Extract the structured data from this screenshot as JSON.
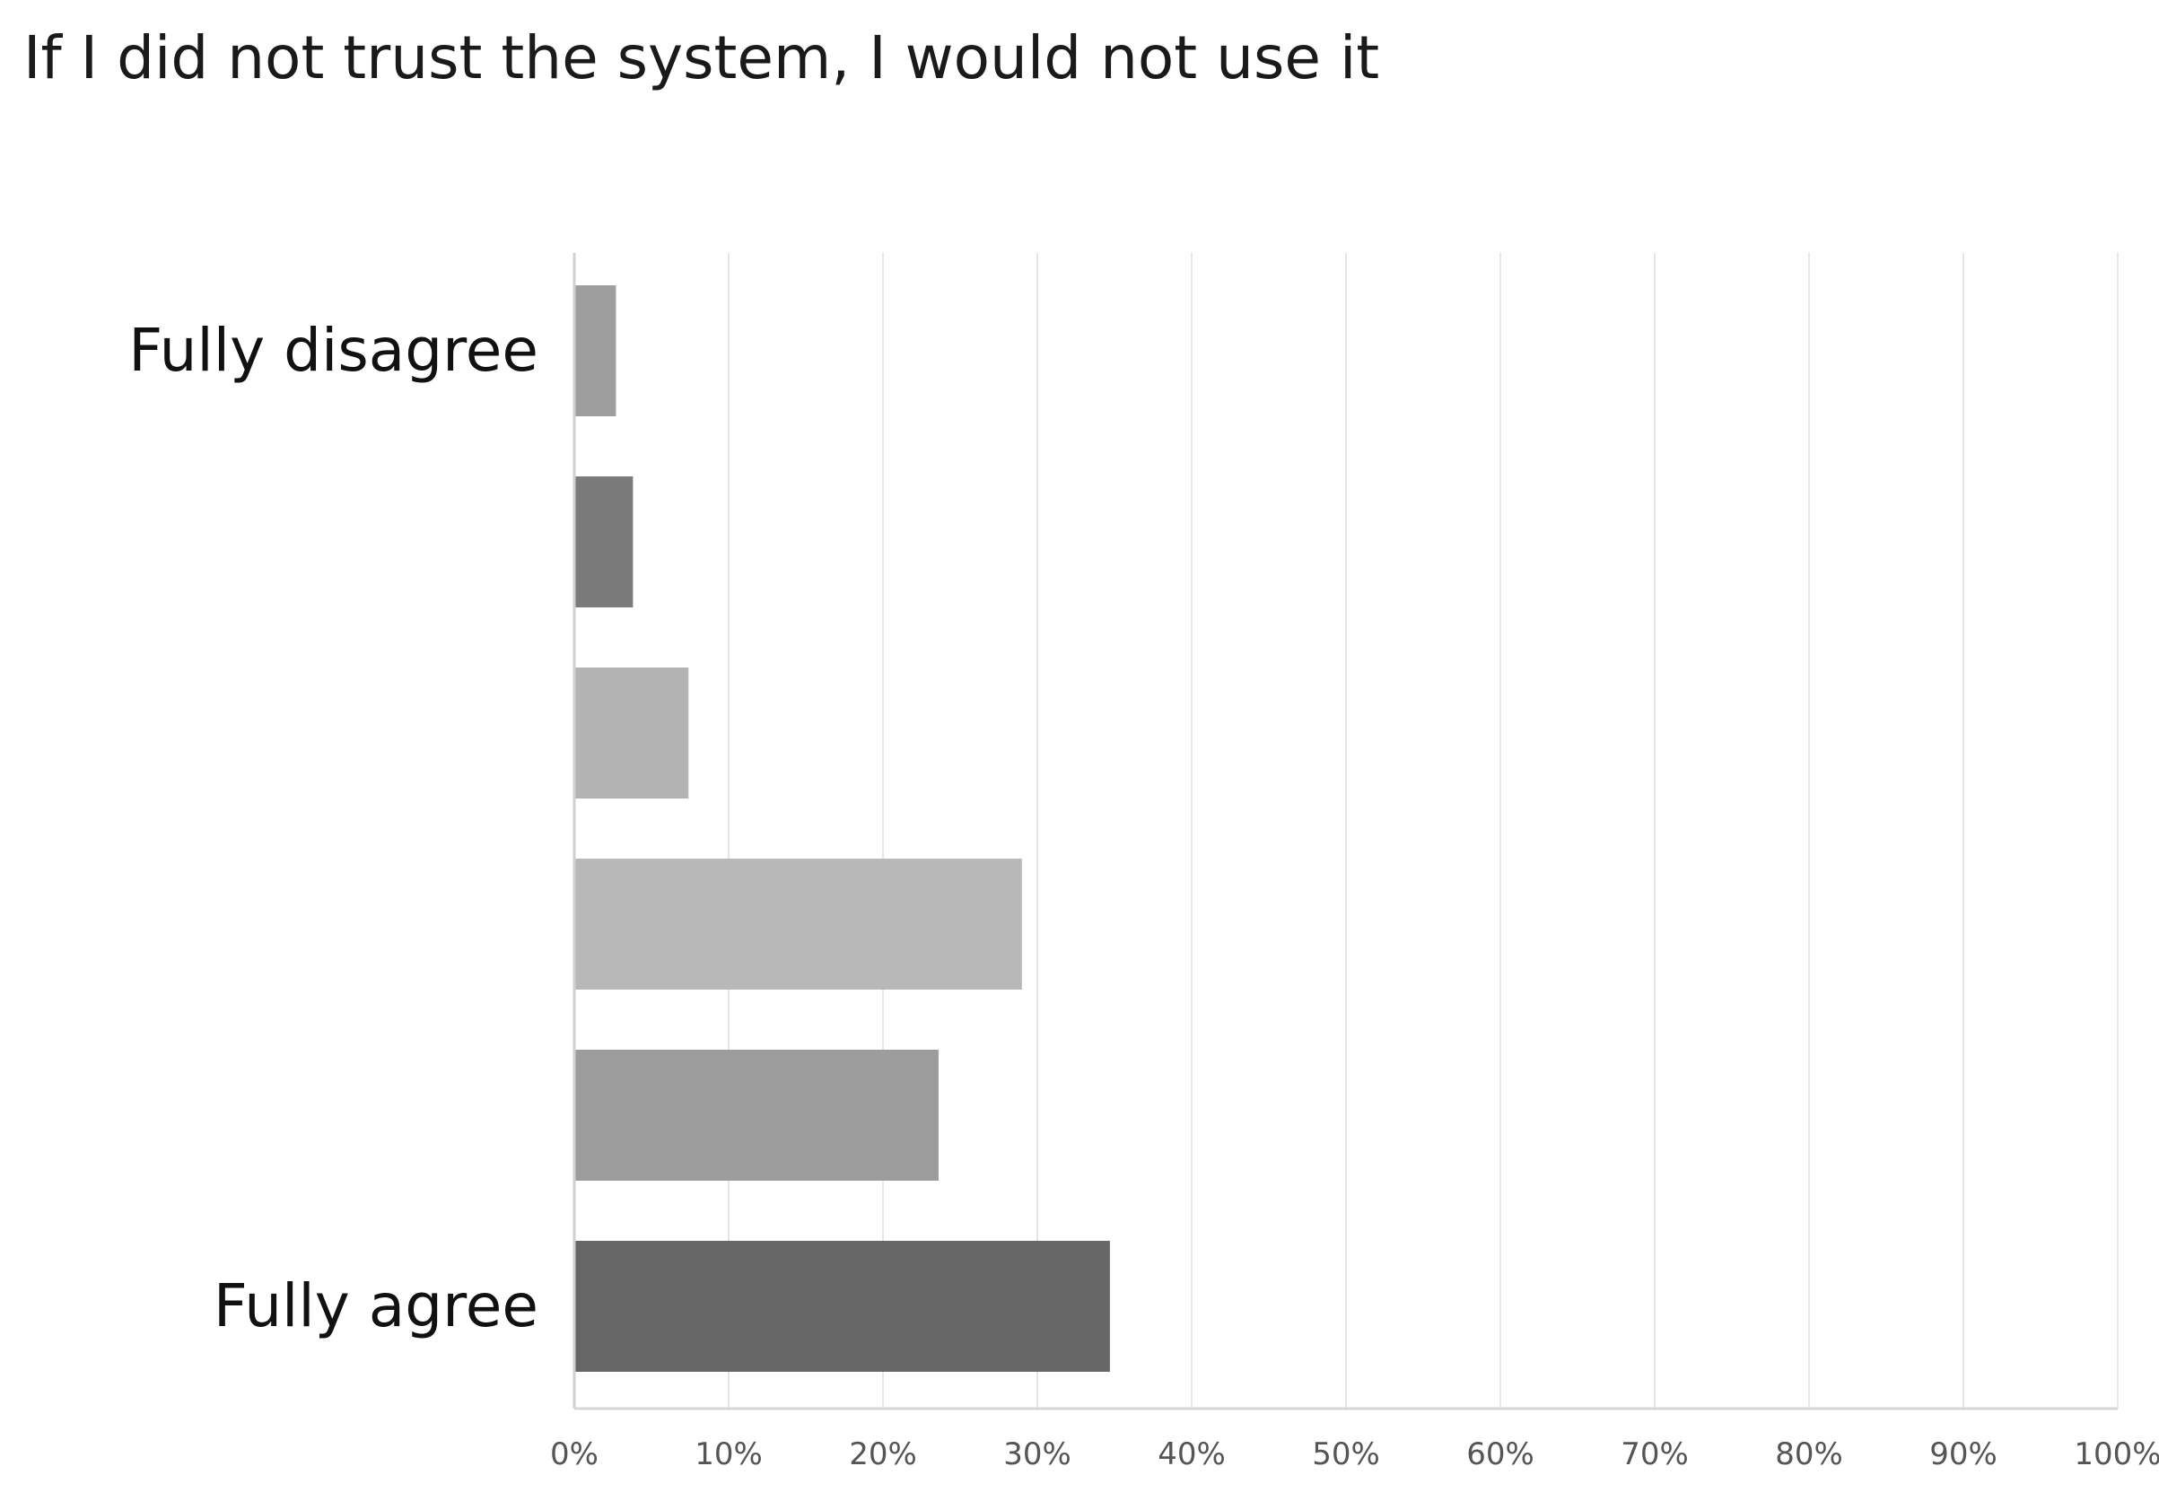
{
  "chart_data": {
    "type": "bar",
    "orientation": "horizontal",
    "title": "If I did not trust the system, I would not use it",
    "categories": [
      "Fully disagree",
      "",
      "",
      "",
      "",
      "Fully agree"
    ],
    "values": [
      2.7,
      3.8,
      7.4,
      29.0,
      23.6,
      34.7
    ],
    "colors": [
      "#9e9e9e",
      "#7a7a7a",
      "#b3b3b3",
      "#b8b8b8",
      "#9c9c9c",
      "#676767"
    ],
    "xlabel": "",
    "ylabel": "",
    "xlim": [
      0,
      100
    ],
    "xticks": [
      0,
      10,
      20,
      30,
      40,
      50,
      60,
      70,
      80,
      90,
      100
    ],
    "xtick_labels": [
      "0%",
      "10%",
      "20%",
      "30%",
      "40%",
      "50%",
      "60%",
      "70%",
      "80%",
      "90%",
      "100%"
    ],
    "grid": "vertical",
    "legend": "none"
  }
}
